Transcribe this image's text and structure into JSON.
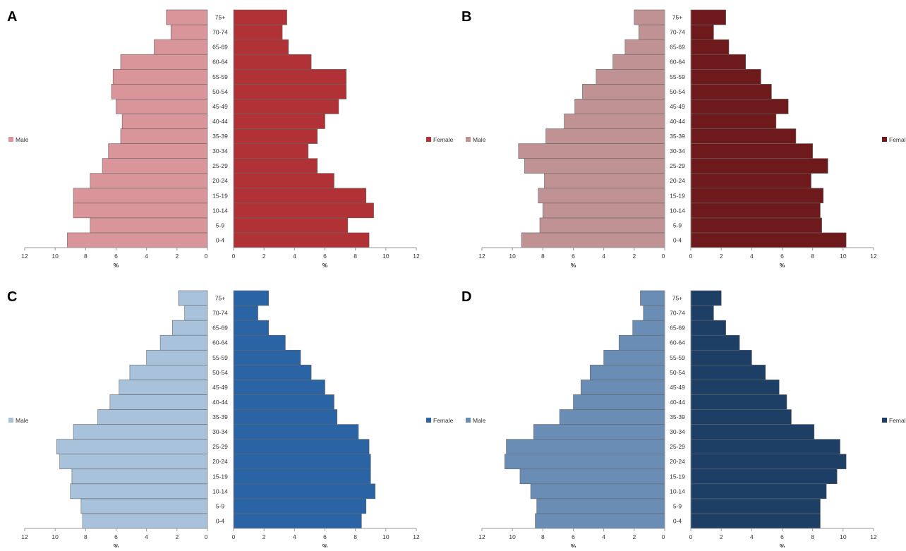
{
  "chart_data": [
    {
      "type": "bar",
      "panel_label": "A",
      "age_groups": [
        "0-4",
        "5-9",
        "10-14",
        "15-19",
        "20-24",
        "25-29",
        "30-34",
        "35-39",
        "40-44",
        "45-49",
        "50-54",
        "55-59",
        "60-64",
        "65-69",
        "70-74",
        "75+"
      ],
      "series": [
        {
          "name": "Male",
          "color": "#d9959a",
          "values": [
            9.2,
            7.7,
            8.8,
            8.8,
            7.7,
            6.9,
            6.5,
            5.7,
            5.6,
            6.0,
            6.3,
            6.2,
            5.7,
            3.5,
            2.4,
            2.7
          ]
        },
        {
          "name": "Female",
          "color": "#b03236",
          "values": [
            8.9,
            7.5,
            9.2,
            8.7,
            6.6,
            5.5,
            4.9,
            5.5,
            6.0,
            6.9,
            7.4,
            7.4,
            5.1,
            3.6,
            3.2,
            3.5
          ]
        }
      ],
      "legend_placement": "outer-sides",
      "xlabel": "%",
      "xlim": [
        0,
        12
      ],
      "x_ticks": [
        12,
        10,
        8,
        6,
        4,
        2,
        0,
        2,
        4,
        6,
        8,
        10,
        12
      ]
    },
    {
      "type": "bar",
      "panel_label": "B",
      "age_groups": [
        "0-4",
        "5-9",
        "10-14",
        "15-19",
        "20-24",
        "25-29",
        "30-34",
        "35-39",
        "40-44",
        "45-49",
        "50-54",
        "55-59",
        "60-64",
        "65-69",
        "70-74",
        "75+"
      ],
      "series": [
        {
          "name": "Male",
          "color": "#c09294",
          "values": [
            9.4,
            8.2,
            8.0,
            8.3,
            7.9,
            9.2,
            9.6,
            7.8,
            6.6,
            5.9,
            5.4,
            4.5,
            3.4,
            2.6,
            1.7,
            2.0
          ]
        },
        {
          "name": "Female",
          "color": "#6e1a1c",
          "values": [
            10.2,
            8.6,
            8.5,
            8.7,
            7.9,
            9.0,
            8.0,
            6.9,
            5.6,
            6.4,
            5.3,
            4.6,
            3.6,
            2.5,
            1.5,
            2.3
          ]
        }
      ],
      "legend_placement": "outer-sides",
      "xlabel": "%",
      "xlim": [
        0,
        12
      ],
      "x_ticks": [
        12,
        10,
        8,
        6,
        4,
        2,
        0,
        2,
        4,
        6,
        8,
        10,
        12
      ]
    },
    {
      "type": "bar",
      "panel_label": "C",
      "age_groups": [
        "0-4",
        "5-9",
        "10-14",
        "15-19",
        "20-24",
        "25-29",
        "30-34",
        "35-39",
        "40-44",
        "45-49",
        "50-54",
        "55-59",
        "60-64",
        "65-69",
        "70-74",
        "75+"
      ],
      "series": [
        {
          "name": "Male",
          "color": "#a8c2dc",
          "values": [
            8.2,
            8.3,
            9.0,
            8.9,
            9.7,
            9.9,
            8.8,
            7.2,
            6.4,
            5.8,
            5.1,
            4.0,
            3.1,
            2.3,
            1.5,
            1.9
          ]
        },
        {
          "name": "Female",
          "color": "#2a64a4",
          "values": [
            8.4,
            8.7,
            9.3,
            9.0,
            9.0,
            8.9,
            8.2,
            6.8,
            6.6,
            6.0,
            5.1,
            4.4,
            3.4,
            2.3,
            1.6,
            2.3
          ]
        }
      ],
      "legend_placement": "outer-sides",
      "xlabel": "%",
      "xlim": [
        0,
        12
      ],
      "x_ticks": [
        12,
        10,
        8,
        6,
        4,
        2,
        0,
        2,
        4,
        6,
        8,
        10,
        12
      ]
    },
    {
      "type": "bar",
      "panel_label": "D",
      "age_groups": [
        "0-4",
        "5-9",
        "10-14",
        "15-19",
        "20-24",
        "25-29",
        "30-34",
        "35-39",
        "40-44",
        "45-49",
        "50-54",
        "55-59",
        "60-64",
        "65-69",
        "70-74",
        "75+"
      ],
      "series": [
        {
          "name": "Male",
          "color": "#6a8db5",
          "values": [
            8.5,
            8.4,
            8.8,
            9.5,
            10.5,
            10.4,
            8.6,
            6.9,
            6.0,
            5.5,
            4.9,
            4.0,
            3.0,
            2.1,
            1.4,
            1.6
          ]
        },
        {
          "name": "Female",
          "color": "#1d3f66",
          "values": [
            8.5,
            8.5,
            8.9,
            9.6,
            10.2,
            9.8,
            8.1,
            6.6,
            6.3,
            5.8,
            4.9,
            4.0,
            3.2,
            2.3,
            1.5,
            2.0
          ]
        }
      ],
      "legend_placement": "outer-sides",
      "xlabel": "%",
      "xlim": [
        0,
        12
      ],
      "x_ticks": [
        12,
        10,
        8,
        6,
        4,
        2,
        0,
        2,
        4,
        6,
        8,
        10,
        12
      ]
    }
  ]
}
